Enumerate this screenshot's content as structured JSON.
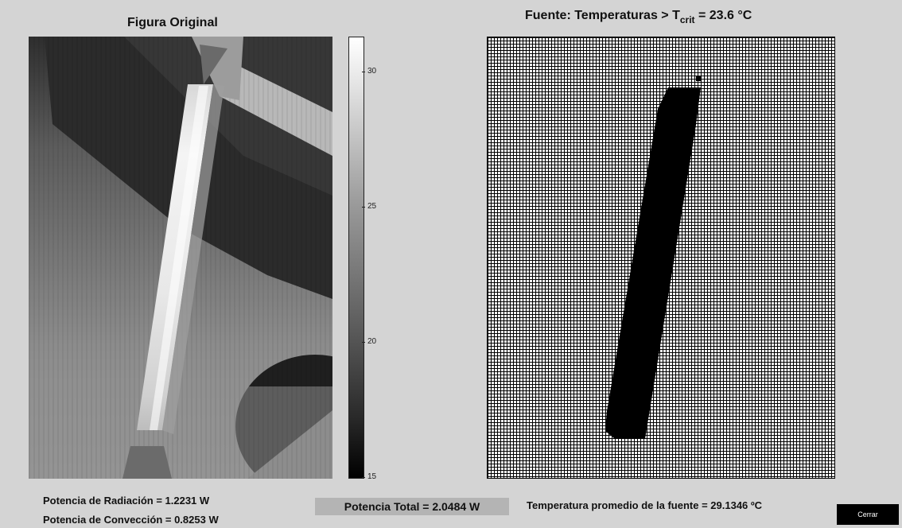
{
  "left_panel": {
    "title": "Figura Original",
    "colorbar": {
      "ticks": [
        "30",
        "25",
        "20",
        "15"
      ],
      "range": [
        15,
        31.2
      ]
    }
  },
  "right_panel": {
    "title_prefix": "Fuente: Temperaturas > T",
    "title_sub": "crit",
    "title_suffix": " = 23.6 °C"
  },
  "results": {
    "radiation": "Potencia de Radiación = 1.2231 W",
    "convection": "Potencia de Convección = 0.8253 W",
    "total": "Potencia Total = 2.0484 W",
    "avg_temp": "Temperatura promedio de la fuente = 29.1346 ºC"
  },
  "buttons": {
    "close": "Cerrar"
  },
  "colors": {
    "background": "#d4d4d4",
    "total_box": "#b4b4b4",
    "button": "#000000"
  }
}
